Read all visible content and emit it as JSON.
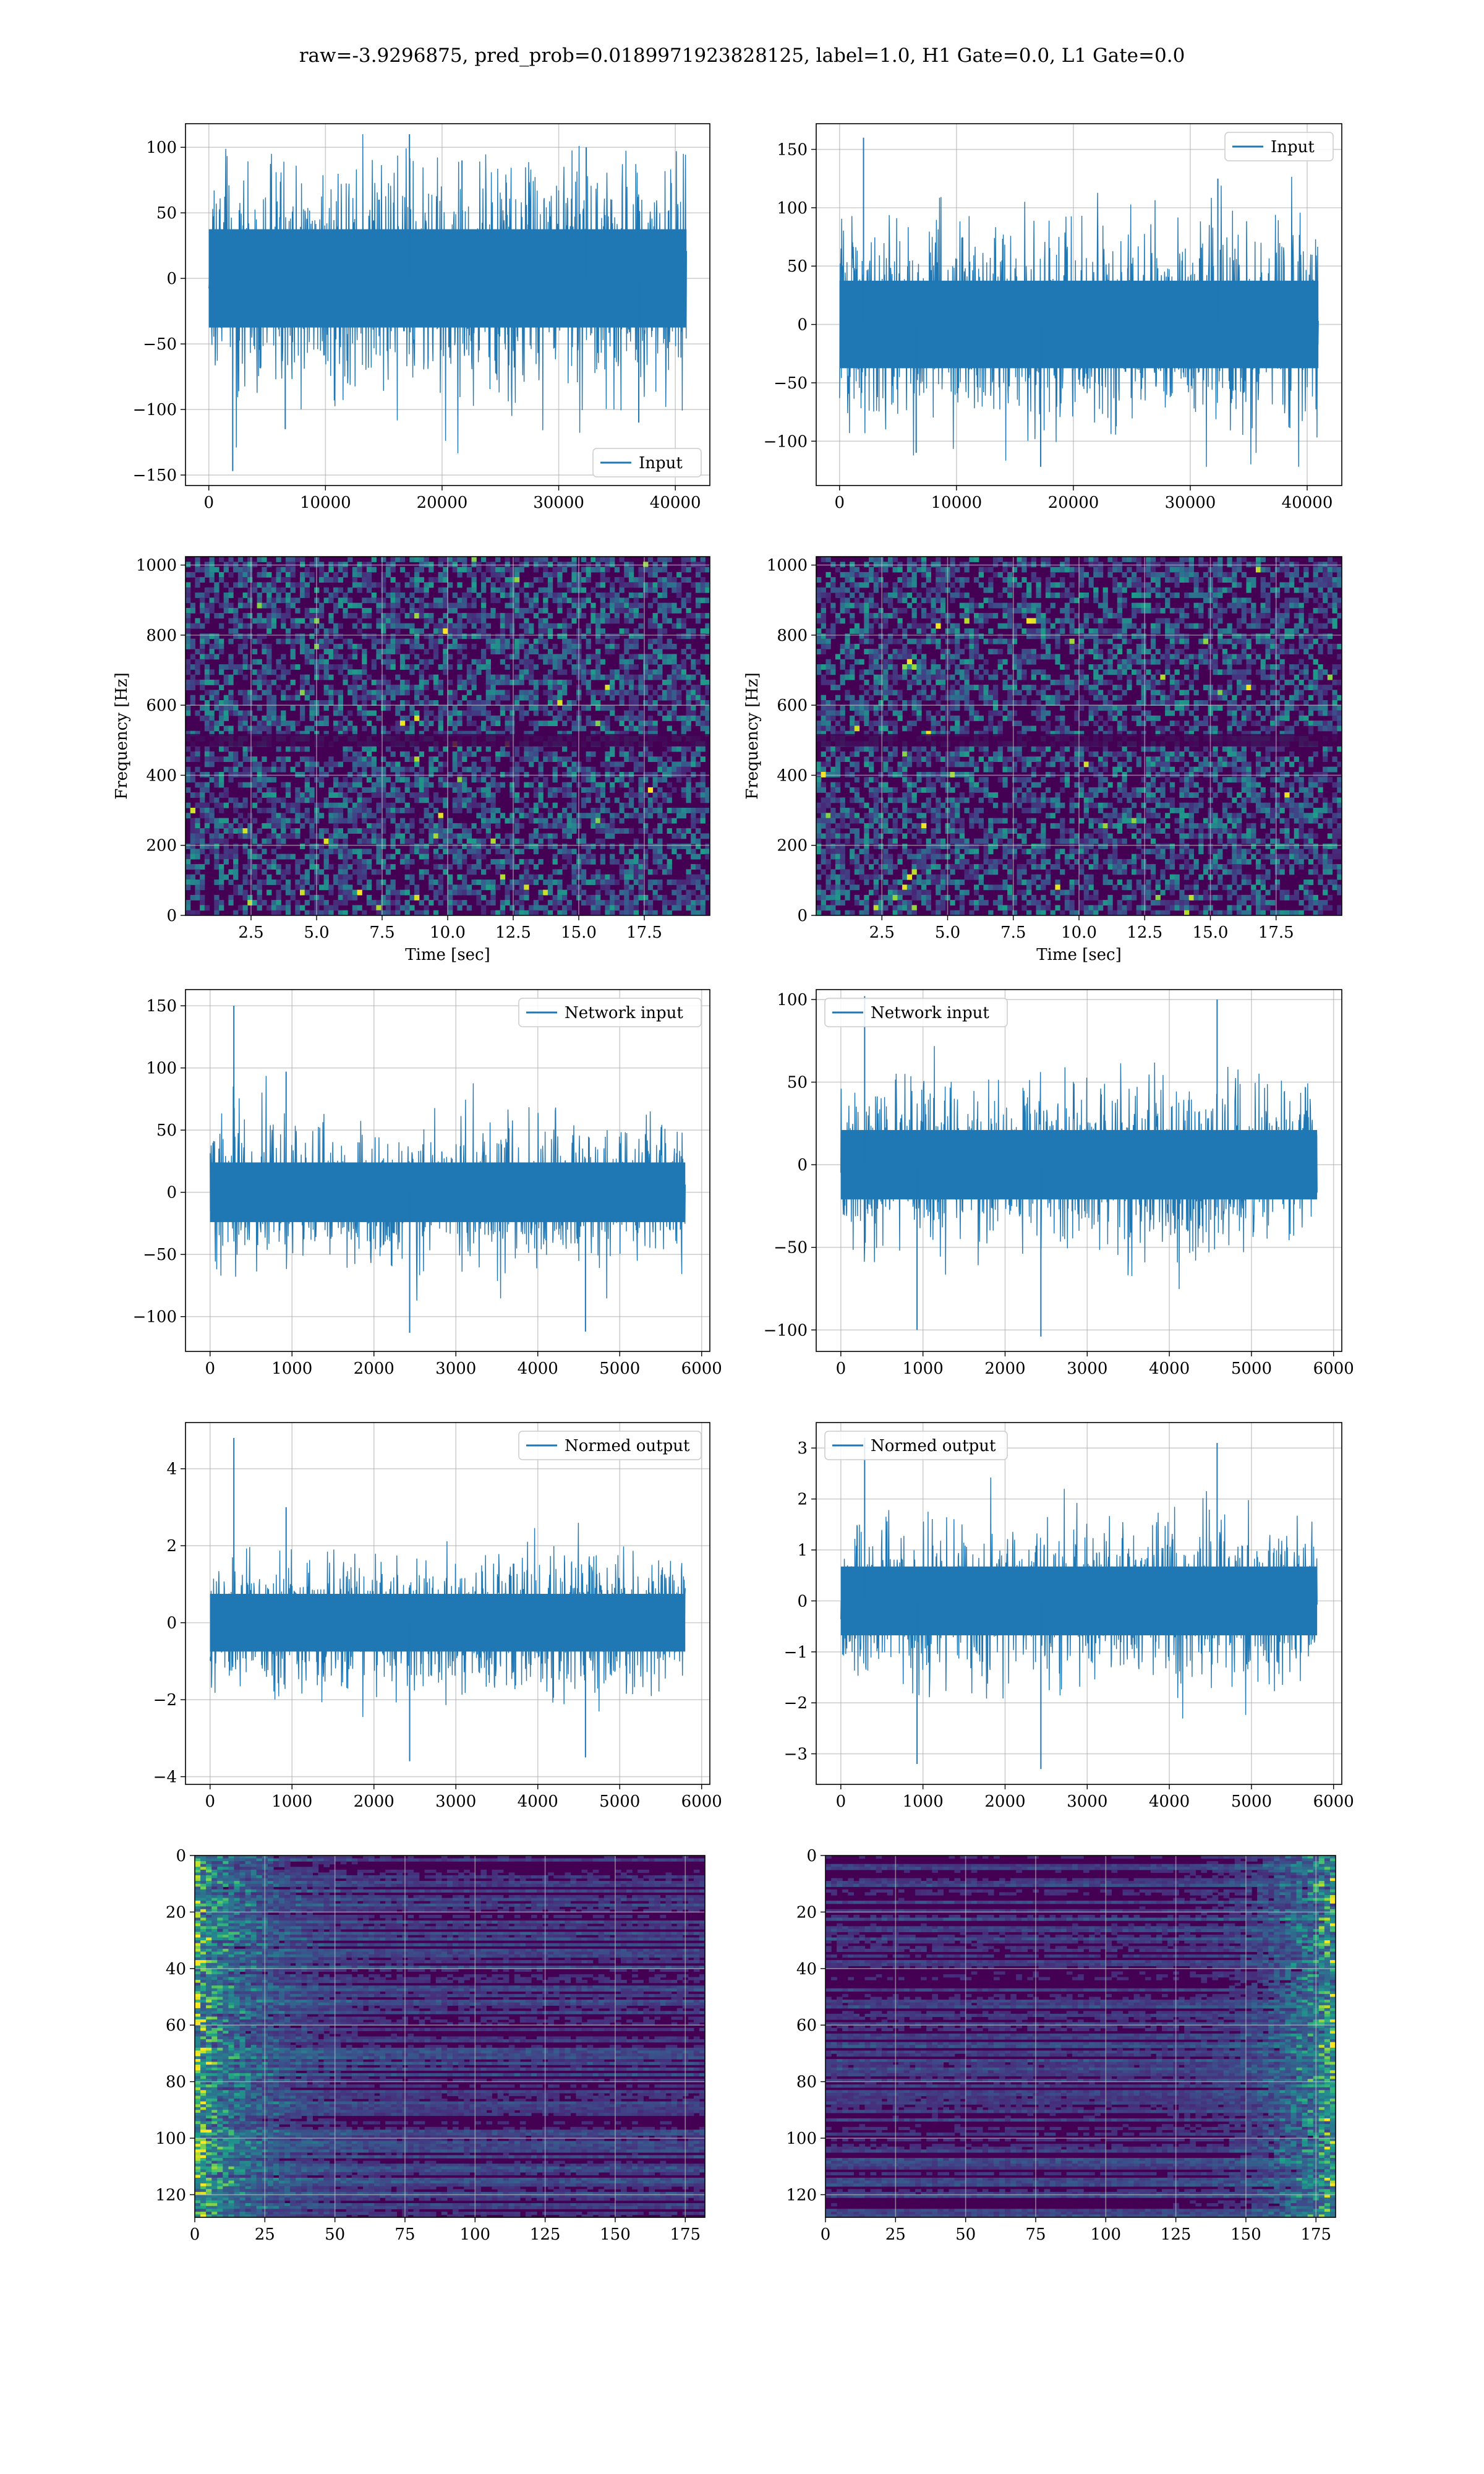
{
  "figure": {
    "suptitle": "raw=-3.9296875, pred_prob=0.0189971923828125, label=1.0, H1 Gate=0.0, L1 Gate=0.0"
  },
  "colors": {
    "series": "#1f77b4",
    "grid": "#b0b0b0",
    "viridis_low": "#440154",
    "viridis_mid": "#21918c",
    "viridis_high": "#fde725"
  },
  "chart_data": [
    {
      "id": "h1-input",
      "type": "line",
      "xlim": [
        -2000,
        42960
      ],
      "ylim": [
        -158,
        118
      ],
      "xticks": [
        0,
        10000,
        20000,
        30000,
        40000
      ],
      "xtick_labels": [
        "0",
        "10000",
        "20000",
        "30000",
        "40000"
      ],
      "yticks": [
        -150,
        -100,
        -50,
        0,
        50,
        100
      ],
      "ytick_labels": [
        "−150",
        "−100",
        "−50",
        "0",
        "50",
        "100"
      ],
      "grid": true,
      "legend": "Input",
      "legend_loc": "lower-right",
      "series": [
        {
          "name": "Input",
          "n": 40960,
          "band": 50,
          "min": -147,
          "max": 110,
          "values": [
            -147,
            110,
            100,
            -115,
            90,
            -110
          ]
        }
      ],
      "xlabel": "",
      "ylabel": ""
    },
    {
      "id": "l1-input",
      "type": "line",
      "xlim": [
        -2000,
        42960
      ],
      "ylim": [
        -138,
        172
      ],
      "xticks": [
        0,
        10000,
        20000,
        30000,
        40000
      ],
      "xtick_labels": [
        "0",
        "10000",
        "20000",
        "30000",
        "40000"
      ],
      "yticks": [
        -100,
        -50,
        0,
        50,
        100,
        150
      ],
      "ytick_labels": [
        "−100",
        "−50",
        "0",
        "50",
        "100",
        "150"
      ],
      "grid": true,
      "legend": "Input",
      "legend_loc": "upper-right",
      "series": [
        {
          "name": "Input",
          "n": 40960,
          "band": 50,
          "min": -122,
          "max": 160,
          "values": [
            160,
            -122,
            125,
            -110
          ]
        }
      ],
      "xlabel": "",
      "ylabel": ""
    },
    {
      "id": "h1-spectrogram",
      "type": "heatmap",
      "xlim": [
        0,
        20
      ],
      "ylim": [
        0,
        1024
      ],
      "xticks": [
        2.5,
        5.0,
        7.5,
        10.0,
        12.5,
        15.0,
        17.5
      ],
      "xtick_labels": [
        "2.5",
        "5.0",
        "7.5",
        "10.0",
        "12.5",
        "15.0",
        "17.5"
      ],
      "yticks": [
        0,
        200,
        400,
        600,
        800,
        1000
      ],
      "ytick_labels": [
        "0",
        "200",
        "400",
        "600",
        "800",
        "1000"
      ],
      "grid": true,
      "xlabel": "Time [sec]",
      "ylabel": "Frequency [Hz]",
      "line_frequencies_hz": [
        500
      ],
      "seed": 11
    },
    {
      "id": "l1-spectrogram",
      "type": "heatmap",
      "xlim": [
        0,
        20
      ],
      "ylim": [
        0,
        1024
      ],
      "xticks": [
        2.5,
        5.0,
        7.5,
        10.0,
        12.5,
        15.0,
        17.5
      ],
      "xtick_labels": [
        "2.5",
        "5.0",
        "7.5",
        "10.0",
        "12.5",
        "15.0",
        "17.5"
      ],
      "yticks": [
        0,
        200,
        400,
        600,
        800,
        1000
      ],
      "ytick_labels": [
        "0",
        "200",
        "400",
        "600",
        "800",
        "1000"
      ],
      "grid": true,
      "xlabel": "Time [sec]",
      "ylabel": "Frequency [Hz]",
      "line_frequencies_hz": [
        500
      ],
      "seed": 23
    },
    {
      "id": "h1-network-input",
      "type": "line",
      "xlim": [
        -300,
        6100
      ],
      "ylim": [
        -128,
        163
      ],
      "xticks": [
        0,
        1000,
        2000,
        3000,
        4000,
        5000,
        6000
      ],
      "xtick_labels": [
        "0",
        "1000",
        "2000",
        "3000",
        "4000",
        "5000",
        "6000"
      ],
      "yticks": [
        -100,
        -50,
        0,
        50,
        100,
        150
      ],
      "ytick_labels": [
        "−100",
        "−50",
        "0",
        "50",
        "100",
        "150"
      ],
      "grid": true,
      "legend": "Network input",
      "legend_loc": "upper-right",
      "series": [
        {
          "name": "Network input",
          "n": 5800,
          "band": 32,
          "min": -113,
          "max": 150,
          "values": [
            150,
            -113,
            -112,
            97
          ]
        }
      ],
      "xlabel": "",
      "ylabel": ""
    },
    {
      "id": "l1-network-input",
      "type": "line",
      "xlim": [
        -300,
        6100
      ],
      "ylim": [
        -113,
        106
      ],
      "xticks": [
        0,
        1000,
        2000,
        3000,
        4000,
        5000,
        6000
      ],
      "xtick_labels": [
        "0",
        "1000",
        "2000",
        "3000",
        "4000",
        "5000",
        "6000"
      ],
      "yticks": [
        -100,
        -50,
        0,
        50,
        100
      ],
      "ytick_labels": [
        "−100",
        "−50",
        "0",
        "50",
        "100"
      ],
      "grid": true,
      "legend": "Network input",
      "legend_loc": "upper-left",
      "series": [
        {
          "name": "Network input",
          "n": 5800,
          "band": 28,
          "min": -104,
          "max": 102,
          "values": [
            102,
            -104,
            100,
            -100
          ]
        }
      ],
      "xlabel": "",
      "ylabel": ""
    },
    {
      "id": "h1-normed-output",
      "type": "line",
      "xlim": [
        -300,
        6100
      ],
      "ylim": [
        -4.2,
        5.2
      ],
      "xticks": [
        0,
        1000,
        2000,
        3000,
        4000,
        5000,
        6000
      ],
      "xtick_labels": [
        "0",
        "1000",
        "2000",
        "3000",
        "4000",
        "5000",
        "6000"
      ],
      "yticks": [
        -4,
        -2,
        0,
        2,
        4
      ],
      "ytick_labels": [
        "−4",
        "−2",
        "0",
        "2",
        "4"
      ],
      "grid": true,
      "legend": "Normed output",
      "legend_loc": "upper-right",
      "series": [
        {
          "name": "Normed output",
          "n": 5800,
          "band": 1.0,
          "min": -3.6,
          "max": 4.8,
          "values": [
            4.8,
            -3.6,
            -3.5,
            3.0
          ]
        }
      ],
      "xlabel": "",
      "ylabel": ""
    },
    {
      "id": "l1-normed-output",
      "type": "line",
      "xlim": [
        -300,
        6100
      ],
      "ylim": [
        -3.6,
        3.5
      ],
      "xticks": [
        0,
        1000,
        2000,
        3000,
        4000,
        5000,
        6000
      ],
      "xtick_labels": [
        "0",
        "1000",
        "2000",
        "3000",
        "4000",
        "5000",
        "6000"
      ],
      "yticks": [
        -3,
        -2,
        -1,
        0,
        1,
        2,
        3
      ],
      "ytick_labels": [
        "−3",
        "−2",
        "−1",
        "0",
        "1",
        "2",
        "3"
      ],
      "grid": true,
      "legend": "Normed output",
      "legend_loc": "upper-left",
      "series": [
        {
          "name": "Normed output",
          "n": 5800,
          "band": 0.9,
          "min": -3.3,
          "max": 3.2,
          "values": [
            3.2,
            -3.3,
            3.1,
            -3.2
          ]
        }
      ],
      "xlabel": "",
      "ylabel": ""
    },
    {
      "id": "h1-feature-map",
      "type": "heatmap",
      "xlim": [
        0,
        182
      ],
      "ylim": [
        128,
        0
      ],
      "xticks": [
        0,
        25,
        50,
        75,
        100,
        125,
        150,
        175
      ],
      "xtick_labels": [
        "0",
        "25",
        "50",
        "75",
        "100",
        "125",
        "150",
        "175"
      ],
      "yticks": [
        0,
        20,
        40,
        60,
        80,
        100,
        120
      ],
      "ytick_labels": [
        "0",
        "20",
        "40",
        "60",
        "80",
        "100",
        "120"
      ],
      "grid": true,
      "xlabel": "",
      "ylabel": "",
      "hot_side": "left",
      "seed": 37
    },
    {
      "id": "l1-feature-map",
      "type": "heatmap",
      "xlim": [
        0,
        182
      ],
      "ylim": [
        128,
        0
      ],
      "xticks": [
        0,
        25,
        50,
        75,
        100,
        125,
        150,
        175
      ],
      "xtick_labels": [
        "0",
        "25",
        "50",
        "75",
        "100",
        "125",
        "150",
        "175"
      ],
      "yticks": [
        0,
        20,
        40,
        60,
        80,
        100,
        120
      ],
      "ytick_labels": [
        "0",
        "20",
        "40",
        "60",
        "80",
        "100",
        "120"
      ],
      "grid": true,
      "xlabel": "",
      "ylabel": "",
      "hot_side": "right",
      "seed": 53
    }
  ]
}
